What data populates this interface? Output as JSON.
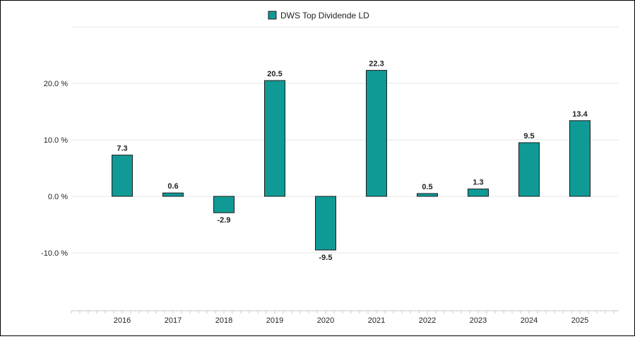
{
  "chart_data": {
    "type": "bar",
    "categories": [
      "2016",
      "2017",
      "2018",
      "2019",
      "2020",
      "2021",
      "2022",
      "2023",
      "2024",
      "2025"
    ],
    "series": [
      {
        "name": "DWS Top Dividende LD",
        "values": [
          7.3,
          0.6,
          -2.9,
          20.5,
          -9.5,
          22.3,
          0.5,
          1.3,
          9.5,
          13.4
        ],
        "data_labels": [
          "7.3",
          "0.6",
          "-2.9",
          "20.5",
          "-9.5",
          "22.3",
          "0.5",
          "1.3",
          "9.5",
          "13.4"
        ]
      }
    ],
    "y_ticks": [
      {
        "value": 20,
        "label": "20.0 %"
      },
      {
        "value": 10,
        "label": "10.0 %"
      },
      {
        "value": 0,
        "label": "0.0 %"
      },
      {
        "value": -10,
        "label": "-10.0 %"
      }
    ],
    "ylim": [
      -20,
      30
    ],
    "grid": true,
    "legend_position": "top-center",
    "colors": {
      "bar_fill": "#0f9a96",
      "bar_stroke": "#1c1c1c",
      "grid": "#e6e6e6",
      "axis": "#c8c8c8",
      "text": "#222222"
    }
  }
}
